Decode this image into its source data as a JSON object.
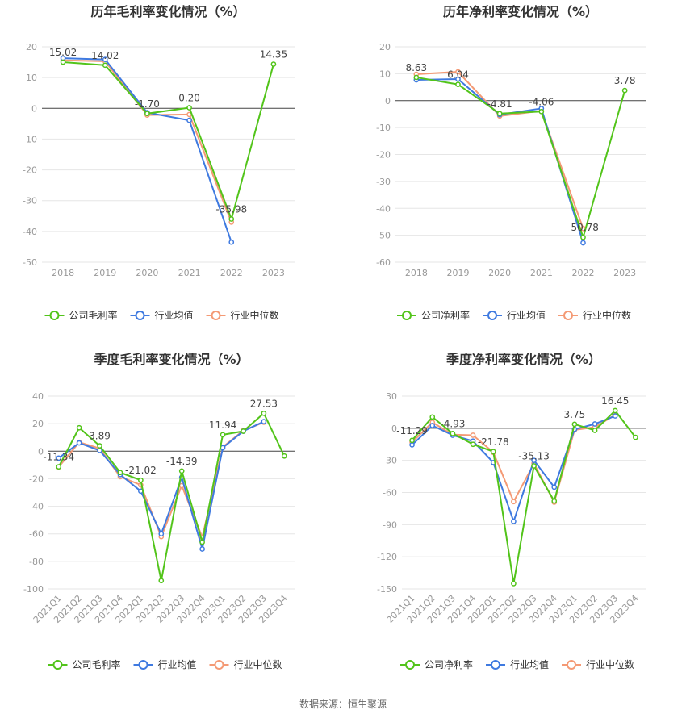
{
  "footer": {
    "source": "数据来源：恒生聚源"
  },
  "colors": {
    "company": "#52c41a",
    "avg": "#3f7ae0",
    "median": "#f49a75",
    "grid": "#e6e6e6",
    "axis": "#666666",
    "tick": "#999999"
  },
  "chart_data": [
    {
      "id": "annual-gross",
      "type": "line",
      "title": "历年毛利率变化情况（%）",
      "categories": [
        "2018",
        "2019",
        "2020",
        "2021",
        "2022",
        "2023"
      ],
      "ylim": [
        -50,
        20
      ],
      "yticks": [
        20,
        10,
        0,
        -10,
        -20,
        -30,
        -40,
        -50
      ],
      "series": [
        {
          "name": "公司毛利率",
          "key": "company",
          "values": [
            15.02,
            14.02,
            -1.7,
            0.2,
            -35.98,
            14.35
          ]
        },
        {
          "name": "行业均值",
          "key": "avg",
          "values": [
            16.3,
            15.9,
            -1.4,
            -3.9,
            -43.5,
            null
          ]
        },
        {
          "name": "行业中位数",
          "key": "median",
          "values": [
            15.6,
            15.3,
            -2.2,
            -2.0,
            -37.0,
            null
          ]
        }
      ],
      "labels": [
        {
          "index": 0,
          "text": "15.02"
        },
        {
          "index": 1,
          "text": "14.02"
        },
        {
          "index": 2,
          "text": "-1.70"
        },
        {
          "index": 3,
          "text": "0.20"
        },
        {
          "index": 4,
          "text": "-35.98"
        },
        {
          "index": 5,
          "text": "14.35"
        }
      ]
    },
    {
      "id": "annual-net",
      "type": "line",
      "title": "历年净利率变化情况（%）",
      "categories": [
        "2018",
        "2019",
        "2020",
        "2021",
        "2022",
        "2023"
      ],
      "ylim": [
        -60,
        20
      ],
      "yticks": [
        20,
        10,
        0,
        -10,
        -20,
        -30,
        -40,
        -50,
        -60
      ],
      "series": [
        {
          "name": "公司净利率",
          "key": "company",
          "values": [
            8.63,
            6.04,
            -4.81,
            -4.06,
            -50.78,
            3.78
          ]
        },
        {
          "name": "行业均值",
          "key": "avg",
          "values": [
            7.7,
            8.0,
            -5.2,
            -2.9,
            -52.8,
            null
          ]
        },
        {
          "name": "行业中位数",
          "key": "median",
          "values": [
            9.8,
            10.7,
            -5.7,
            -3.8,
            -47.5,
            null
          ]
        }
      ],
      "labels": [
        {
          "index": 0,
          "text": "8.63"
        },
        {
          "index": 1,
          "text": "6.04"
        },
        {
          "index": 2,
          "text": "-4.81"
        },
        {
          "index": 3,
          "text": "-4.06"
        },
        {
          "index": 4,
          "text": "-50.78"
        },
        {
          "index": 5,
          "text": "3.78"
        }
      ]
    },
    {
      "id": "quarter-gross",
      "type": "line",
      "title": "季度毛利率变化情况（%）",
      "categories": [
        "2021Q1",
        "2021Q2",
        "2021Q3",
        "2021Q4",
        "2022Q1",
        "2022Q2",
        "2022Q3",
        "2022Q4",
        "2023Q1",
        "2023Q2",
        "2023Q3",
        "2023Q4"
      ],
      "ylim": [
        -100,
        40
      ],
      "yticks": [
        40,
        20,
        0,
        -20,
        -40,
        -60,
        -80,
        -100
      ],
      "series": [
        {
          "name": "公司毛利率",
          "key": "company",
          "values": [
            -11.34,
            17.0,
            3.89,
            -15.5,
            -21.02,
            -94.0,
            -14.39,
            -66.0,
            11.94,
            14.5,
            27.53,
            -3.5
          ]
        },
        {
          "name": "行业均值",
          "key": "avg",
          "values": [
            -5.0,
            6.0,
            0.5,
            -17.0,
            -29.0,
            -60.0,
            -19.0,
            -71.0,
            2.5,
            14.5,
            21.5,
            null
          ]
        },
        {
          "name": "行业中位数",
          "key": "median",
          "values": [
            -11.5,
            6.5,
            2.0,
            -18.5,
            -24.5,
            -62.0,
            -25.0,
            -62.5,
            3.0,
            15.0,
            21.0,
            null
          ]
        }
      ],
      "labels": [
        {
          "index": 0,
          "text": "-11.34"
        },
        {
          "index": 2,
          "text": "3.89"
        },
        {
          "index": 4,
          "text": "-21.02"
        },
        {
          "index": 6,
          "text": "-14.39"
        },
        {
          "index": 8,
          "text": "11.94"
        },
        {
          "index": 10,
          "text": "27.53"
        }
      ]
    },
    {
      "id": "quarter-net",
      "type": "line",
      "title": "季度净利率变化情况（%）",
      "categories": [
        "2021Q1",
        "2021Q2",
        "2021Q3",
        "2021Q4",
        "2022Q1",
        "2022Q2",
        "2022Q3",
        "2022Q4",
        "2023Q1",
        "2023Q2",
        "2023Q3",
        "2023Q4"
      ],
      "ylim": [
        -150,
        30
      ],
      "yticks": [
        30,
        0,
        -30,
        -60,
        -90,
        -120,
        -150
      ],
      "series": [
        {
          "name": "公司净利率",
          "key": "company",
          "values": [
            -11.29,
            10.5,
            -4.93,
            -15.0,
            -21.78,
            -145.0,
            -35.13,
            -68.0,
            3.75,
            -2.0,
            16.45,
            -8.5
          ]
        },
        {
          "name": "行业均值",
          "key": "avg",
          "values": [
            -15.5,
            2.5,
            -6.5,
            -12.0,
            -32.0,
            -87.0,
            -30.0,
            -55.0,
            -1.0,
            4.0,
            11.5,
            null
          ]
        },
        {
          "name": "行业中位数",
          "key": "median",
          "values": [
            -13.0,
            5.5,
            -6.0,
            -6.5,
            -22.5,
            -68.5,
            -33.0,
            -69.0,
            -1.5,
            1.0,
            12.5,
            null
          ]
        }
      ],
      "labels": [
        {
          "index": 0,
          "text": "-11.29"
        },
        {
          "index": 2,
          "text": "-4.93"
        },
        {
          "index": 4,
          "text": "-21.78"
        },
        {
          "index": 6,
          "text": "-35.13"
        },
        {
          "index": 8,
          "text": "3.75"
        },
        {
          "index": 10,
          "text": "16.45"
        }
      ]
    }
  ]
}
